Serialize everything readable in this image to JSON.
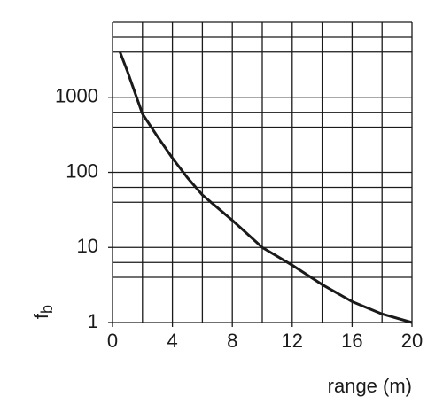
{
  "chart_data": {
    "type": "line",
    "xlabel": "range (m)",
    "ylabel": "f",
    "ylabel_subscript": "b",
    "x": [
      0.5,
      1,
      2,
      3,
      4,
      5,
      6,
      8,
      10,
      12,
      14,
      16,
      18,
      20
    ],
    "series": [
      {
        "color": "#1a1a1a",
        "values": [
          4000,
          2200,
          600,
          300,
          155,
          85,
          50,
          23,
          10,
          5.8,
          3.2,
          1.9,
          1.3,
          1
        ]
      }
    ],
    "xlim": [
      0,
      20
    ],
    "xticks": [
      0,
      4,
      8,
      12,
      16,
      20
    ],
    "x_gridlines": [
      0,
      2,
      4,
      6,
      8,
      10,
      12,
      14,
      16,
      18,
      20
    ],
    "ylim": [
      1,
      10000
    ],
    "yticks": [
      1,
      10,
      100,
      1000
    ],
    "y_gridlines": [
      1,
      4,
      6.3,
      10,
      40,
      63,
      100,
      400,
      630,
      1000,
      4000,
      6300,
      10000
    ],
    "log_y": true,
    "grid": true
  }
}
